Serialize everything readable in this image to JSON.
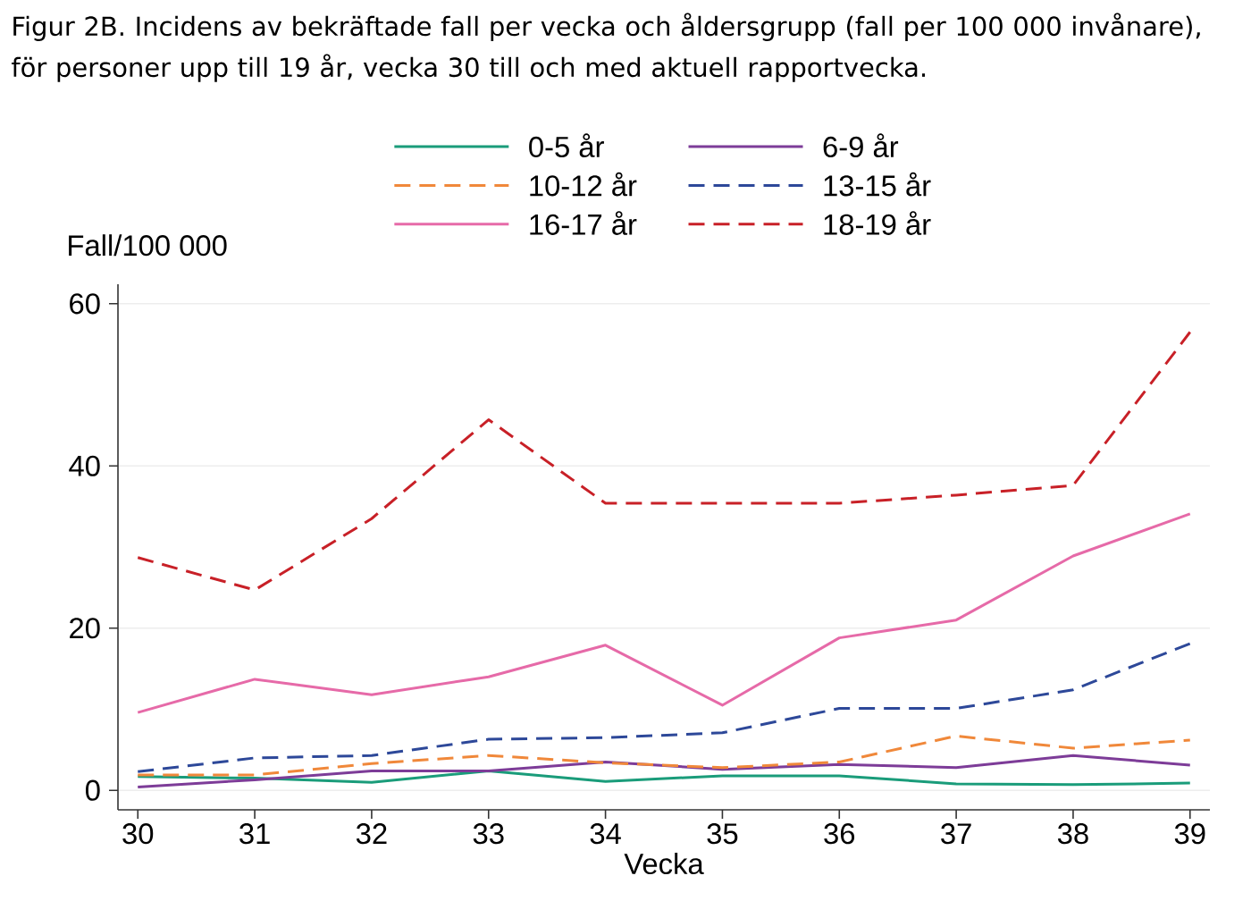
{
  "chart_data": {
    "type": "line",
    "title": "Figur 2B. Incidens av bekräftade fall per vecka och åldersgrupp (fall per 100 000 invånare), för personer upp till 19 år, vecka 30 till och med aktuell rapportvecka.",
    "xlabel": "Vecka",
    "ylabel": "Fall/100 000",
    "x": [
      30,
      31,
      32,
      33,
      34,
      35,
      36,
      37,
      38,
      39
    ],
    "xlim": [
      29.83,
      39.17
    ],
    "xticks": [
      30,
      31,
      32,
      33,
      34,
      35,
      36,
      37,
      38,
      39
    ],
    "ylim": [
      -2.4,
      62.4
    ],
    "yticks": [
      0,
      20,
      40,
      60
    ],
    "grid": "y",
    "legend": "top",
    "series": [
      {
        "name": "0-5 år",
        "color": "#1a9c7a",
        "line_style": "solid",
        "values": [
          1.7,
          1.5,
          1.0,
          2.4,
          1.1,
          1.8,
          1.8,
          0.8,
          0.7,
          0.9
        ]
      },
      {
        "name": "6-9 år",
        "color": "#7d3c98",
        "line_style": "solid",
        "values": [
          0.4,
          1.3,
          2.4,
          2.4,
          3.5,
          2.6,
          3.2,
          2.8,
          4.3,
          3.1
        ]
      },
      {
        "name": "10-12 år",
        "color": "#f0883a",
        "line_style": "dashed",
        "values": [
          1.9,
          1.9,
          3.3,
          4.3,
          3.4,
          2.8,
          3.5,
          6.7,
          5.2,
          6.2
        ]
      },
      {
        "name": "13-15 år",
        "color": "#2d4899",
        "line_style": "dashed",
        "values": [
          2.3,
          4.0,
          4.3,
          6.3,
          6.5,
          7.1,
          10.1,
          10.1,
          12.4,
          18.1
        ]
      },
      {
        "name": "16-17 år",
        "color": "#e66aa8",
        "line_style": "solid",
        "values": [
          9.6,
          13.7,
          11.8,
          14.0,
          17.9,
          10.5,
          18.8,
          21.0,
          28.9,
          34.1
        ]
      },
      {
        "name": "18-19 år",
        "color": "#c82027",
        "line_style": "dashed",
        "values": [
          28.7,
          24.7,
          33.5,
          45.7,
          35.4,
          35.4,
          35.4,
          36.4,
          37.6,
          56.5
        ]
      }
    ]
  }
}
